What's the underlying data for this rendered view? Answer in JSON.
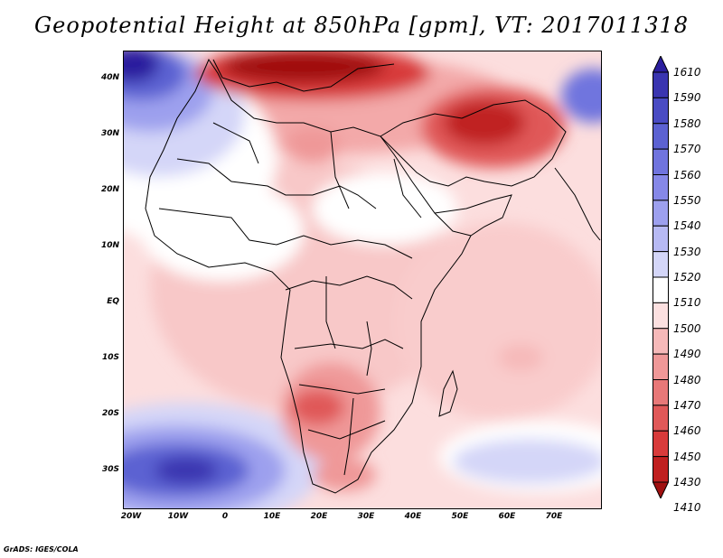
{
  "title": "Geopotential Height at 850hPa [gpm], VT: 2017011318",
  "credit": "GrADS: IGES/COLA",
  "map": {
    "lat_labels": [
      "40N",
      "30N",
      "20N",
      "10N",
      "EQ",
      "10S",
      "20S",
      "30S"
    ],
    "lon_labels": [
      "20W",
      "10W",
      "0",
      "10E",
      "20E",
      "30E",
      "40E",
      "50E",
      "60E",
      "70E"
    ]
  },
  "colorbar": {
    "labels": [
      "1610",
      "1590",
      "1580",
      "1570",
      "1560",
      "1550",
      "1540",
      "1530",
      "1520",
      "1510",
      "1500",
      "1490",
      "1480",
      "1470",
      "1460",
      "1450",
      "1430",
      "1410"
    ],
    "colors": [
      "#2b1e9e",
      "#3a35b0",
      "#4a4cc4",
      "#5c62d2",
      "#7074de",
      "#8688e8",
      "#9da0ee",
      "#b7b9f3",
      "#d4d6f8",
      "#ffffff",
      "#fce0e0",
      "#f6b9b9",
      "#ef9898",
      "#e87878",
      "#e05858",
      "#d83b3b",
      "#c02020",
      "#a01010"
    ]
  }
}
